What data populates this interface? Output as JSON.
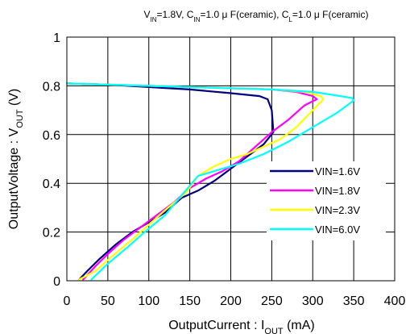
{
  "chart_data": {
    "type": "line",
    "title": {
      "parts": [
        {
          "t": "V",
          "sub": false
        },
        {
          "t": "IN",
          "sub": true
        },
        {
          "t": "=1.8V, C",
          "sub": false
        },
        {
          "t": "IN",
          "sub": true
        },
        {
          "t": "=1.0 μ F(ceramic), C",
          "sub": false
        },
        {
          "t": "L",
          "sub": true
        },
        {
          "t": "=1.0 μ F(ceramic)",
          "sub": false
        }
      ]
    },
    "xlabel": {
      "parts": [
        {
          "t": "OutputCurrent : I",
          "sub": false
        },
        {
          "t": "OUT",
          "sub": true
        },
        {
          "t": " (mA)",
          "sub": false
        }
      ]
    },
    "ylabel": {
      "parts": [
        {
          "t": "OutputVoltage : V",
          "sub": false
        },
        {
          "t": "OUT",
          "sub": true
        },
        {
          "t": " (V)",
          "sub": false
        }
      ]
    },
    "xlim": [
      0,
      400
    ],
    "ylim": [
      0,
      1
    ],
    "xticks": [
      0,
      50,
      100,
      150,
      200,
      250,
      300,
      350,
      400
    ],
    "yticks": [
      0,
      0.2,
      0.4,
      0.6,
      0.8,
      1
    ],
    "ytick_labels": [
      "0",
      "0.2",
      "0.4",
      "0.6",
      "0.8",
      "1"
    ],
    "grid": true,
    "legend": "lower-right",
    "series": [
      {
        "name": "VIN=1.6V",
        "color": "#000080",
        "points": [
          [
            0,
            0.81
          ],
          [
            50,
            0.805
          ],
          [
            100,
            0.795
          ],
          [
            150,
            0.785
          ],
          [
            200,
            0.77
          ],
          [
            235,
            0.758
          ],
          [
            245,
            0.745
          ],
          [
            250,
            0.7
          ],
          [
            252,
            0.61
          ],
          [
            240,
            0.56
          ],
          [
            220,
            0.51
          ],
          [
            200,
            0.46
          ],
          [
            180,
            0.41
          ],
          [
            160,
            0.37
          ],
          [
            140,
            0.34
          ],
          [
            120,
            0.28
          ],
          [
            100,
            0.24
          ],
          [
            80,
            0.2
          ],
          [
            60,
            0.15
          ],
          [
            40,
            0.09
          ],
          [
            25,
            0.04
          ],
          [
            15,
            0.005
          ]
        ]
      },
      {
        "name": "VIN=1.8V",
        "color": "#ff00ff",
        "points": [
          [
            0,
            0.81
          ],
          [
            50,
            0.805
          ],
          [
            100,
            0.8
          ],
          [
            150,
            0.795
          ],
          [
            200,
            0.79
          ],
          [
            250,
            0.785
          ],
          [
            280,
            0.775
          ],
          [
            300,
            0.758
          ],
          [
            305,
            0.745
          ],
          [
            290,
            0.72
          ],
          [
            270,
            0.66
          ],
          [
            250,
            0.61
          ],
          [
            230,
            0.55
          ],
          [
            210,
            0.49
          ],
          [
            190,
            0.45
          ],
          [
            170,
            0.42
          ],
          [
            150,
            0.38
          ],
          [
            130,
            0.32
          ],
          [
            110,
            0.27
          ],
          [
            90,
            0.22
          ],
          [
            70,
            0.17
          ],
          [
            50,
            0.11
          ],
          [
            35,
            0.06
          ],
          [
            20,
            0.005
          ]
        ]
      },
      {
        "name": "VIN=2.3V",
        "color": "#ffff00",
        "points": [
          [
            0,
            0.81
          ],
          [
            50,
            0.805
          ],
          [
            100,
            0.8
          ],
          [
            150,
            0.795
          ],
          [
            200,
            0.79
          ],
          [
            250,
            0.785
          ],
          [
            290,
            0.775
          ],
          [
            310,
            0.758
          ],
          [
            313,
            0.745
          ],
          [
            300,
            0.7
          ],
          [
            280,
            0.63
          ],
          [
            260,
            0.58
          ],
          [
            240,
            0.55
          ],
          [
            220,
            0.52
          ],
          [
            200,
            0.5
          ],
          [
            180,
            0.47
          ],
          [
            160,
            0.43
          ],
          [
            145,
            0.36
          ],
          [
            120,
            0.29
          ],
          [
            100,
            0.23
          ],
          [
            80,
            0.17
          ],
          [
            55,
            0.1
          ],
          [
            35,
            0.04
          ],
          [
            15,
            0.005
          ]
        ]
      },
      {
        "name": "VIN=6.0V",
        "color": "#00ffff",
        "points": [
          [
            0,
            0.81
          ],
          [
            50,
            0.805
          ],
          [
            100,
            0.8
          ],
          [
            150,
            0.795
          ],
          [
            200,
            0.79
          ],
          [
            250,
            0.785
          ],
          [
            300,
            0.775
          ],
          [
            330,
            0.76
          ],
          [
            348,
            0.75
          ],
          [
            350,
            0.74
          ],
          [
            330,
            0.69
          ],
          [
            300,
            0.63
          ],
          [
            270,
            0.57
          ],
          [
            240,
            0.52
          ],
          [
            210,
            0.48
          ],
          [
            180,
            0.45
          ],
          [
            160,
            0.43
          ],
          [
            140,
            0.35
          ],
          [
            120,
            0.27
          ],
          [
            95,
            0.2
          ],
          [
            75,
            0.14
          ],
          [
            50,
            0.07
          ],
          [
            30,
            0.005
          ]
        ]
      }
    ]
  }
}
